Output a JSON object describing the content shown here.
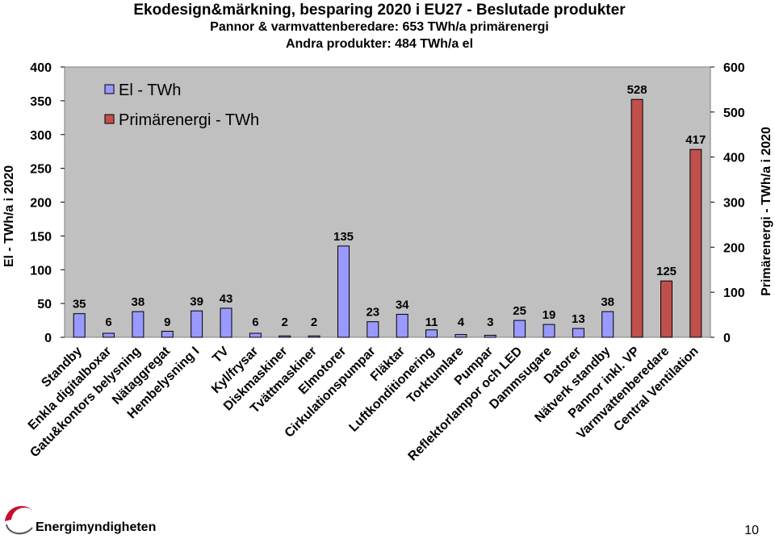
{
  "chart_data": {
    "type": "bar",
    "title": "Ekodesign&märkning,  besparing 2020 i EU27 - Beslutade produkter",
    "subtitle_lines": [
      "Pannor & varmvattenberedare: 653 TWh/a primärenergi",
      "Andra  produkter: 484 TWh/a el"
    ],
    "ylabel_left": "El - TWh/a i 2020",
    "ylabel_right": "Primärenergi - TWh/a i 2020",
    "ylim_left": [
      0,
      400
    ],
    "ylim_right": [
      0,
      600
    ],
    "yticks_left": [
      "0",
      "50",
      "100",
      "150",
      "200",
      "250",
      "300",
      "350",
      "400"
    ],
    "yticks_right": [
      "0",
      "100",
      "200",
      "300",
      "400",
      "500",
      "600"
    ],
    "legend_position": "top-left",
    "grid": false,
    "categories": [
      "Standby",
      "Enkla digitalboxar",
      "Gatu&kontors belysning",
      "Nätaggregat",
      "Hembelysning I",
      "TV",
      "Kyl/frysar",
      "Diskmaskiner",
      "Tvättmaskiner",
      "Elmotorer",
      "Cirkulationspumpar",
      "Fläktar",
      "Luftkonditionering",
      "Torktumlare",
      "Pumpar",
      "Reflektorlampor och LED",
      "Dammsugare",
      "Datorer",
      "Nätverk standby",
      "Pannor inkl. VP",
      "Varmvattenberedare",
      "Central Ventilation"
    ],
    "series": [
      {
        "name": "El - TWh",
        "color": "#9999ff",
        "axis": "left",
        "values": [
          35,
          6,
          38,
          9,
          39,
          43,
          6,
          2,
          2,
          135,
          23,
          34,
          11,
          4,
          3,
          25,
          19,
          13,
          38,
          null,
          null,
          null
        ]
      },
      {
        "name": "Primärenergi - TWh",
        "color": "#c0504d",
        "axis": "right",
        "values": [
          null,
          null,
          null,
          null,
          null,
          null,
          null,
          null,
          null,
          null,
          null,
          null,
          null,
          null,
          null,
          null,
          null,
          null,
          null,
          528,
          125,
          417
        ]
      }
    ]
  },
  "footer": {
    "logo_text": "Energimyndigheten",
    "page_number": "10"
  }
}
